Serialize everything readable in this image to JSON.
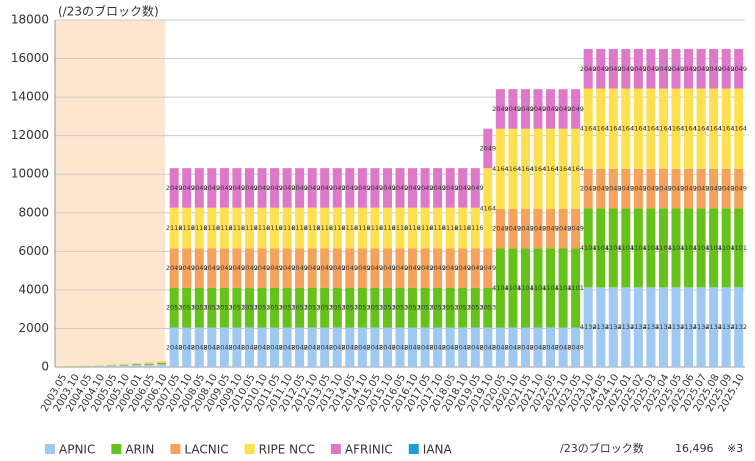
{
  "chart_data": {
    "type": "stacked_bar",
    "y_axis_label": "(/23のブロック数)",
    "categories": [
      "2003.05",
      "2003.10",
      "2004.05",
      "2004.10",
      "2005.05",
      "2005.10",
      "2006.01",
      "2006.05",
      "2006.10",
      "2007.05",
      "2007.10",
      "2008.05",
      "2008.10",
      "2009.05",
      "2009.10",
      "2010.05",
      "2010.10",
      "2011.05",
      "2011.10",
      "2012.05",
      "2012.10",
      "2013.05",
      "2013.10",
      "2014.05",
      "2014.10",
      "2015.05",
      "2015.10",
      "2016.05",
      "2016.10",
      "2017.05",
      "2017.10",
      "2018.05",
      "2018.10",
      "2019.05",
      "2019.10",
      "2020.05",
      "2020.10",
      "2021.05",
      "2021.10",
      "2022.05",
      "2022.10",
      "2023.05",
      "2023.10",
      "2024.05",
      "2024.10",
      "2025.01",
      "2025.02",
      "2025.03",
      "2025.04",
      "2025.05",
      "2025.06",
      "2025.07",
      "2025.08",
      "2025.09",
      "2025.10"
    ],
    "series": [
      {
        "name": "APNIC",
        "color": "#9fc9f0",
        "values": [
          10,
          20,
          30,
          40,
          60,
          80,
          100,
          120,
          150,
          2048,
          2048,
          2048,
          2048,
          2048,
          2048,
          2048,
          2048,
          2048,
          2048,
          2048,
          2048,
          2048,
          2048,
          2048,
          2048,
          2048,
          2048,
          2048,
          2048,
          2048,
          2048,
          2048,
          2048,
          2048,
          2048,
          2048,
          2048,
          2048,
          2048,
          2048,
          2048,
          2048,
          4132,
          4132,
          4132,
          4132,
          4132,
          4132,
          4132,
          4132,
          4132,
          4132,
          4132,
          4132,
          4132
        ]
      },
      {
        "name": "ARIN",
        "color": "#66c21a",
        "values": [
          5,
          10,
          15,
          20,
          25,
          30,
          40,
          50,
          60,
          2053,
          2053,
          2053,
          2053,
          2053,
          2053,
          2053,
          2053,
          2053,
          2053,
          2053,
          2053,
          2053,
          2053,
          2053,
          2053,
          2053,
          2053,
          2053,
          2053,
          2053,
          2053,
          2053,
          2053,
          2053,
          2053,
          4101,
          4101,
          4101,
          4101,
          4101,
          4101,
          4101,
          4101,
          4101,
          4101,
          4101,
          4101,
          4101,
          4101,
          4101,
          4101,
          4101,
          4101,
          4101,
          4101
        ]
      },
      {
        "name": "LACNIC",
        "color": "#f5a35c",
        "values": [
          2,
          4,
          6,
          8,
          10,
          12,
          14,
          16,
          18,
          2049,
          2049,
          2049,
          2049,
          2049,
          2049,
          2049,
          2049,
          2049,
          2049,
          2049,
          2049,
          2049,
          2049,
          2049,
          2049,
          2049,
          2049,
          2049,
          2049,
          2049,
          2049,
          2049,
          2049,
          2049,
          2049,
          2049,
          2049,
          2049,
          2049,
          2049,
          2049,
          2049,
          2049,
          2049,
          2049,
          2049,
          2049,
          2049,
          2049,
          2049,
          2049,
          2049,
          2049,
          2049,
          2049
        ]
      },
      {
        "name": "RIPE NCC",
        "color": "#ffe050",
        "values": [
          5,
          10,
          15,
          20,
          30,
          40,
          50,
          60,
          70,
          2116,
          2116,
          2116,
          2116,
          2116,
          2116,
          2116,
          2116,
          2116,
          2116,
          2116,
          2116,
          2116,
          2116,
          2116,
          2116,
          2116,
          2116,
          2116,
          2116,
          2116,
          2116,
          2116,
          2116,
          2116,
          4164,
          4164,
          4164,
          4164,
          4164,
          4164,
          4164,
          4164,
          4164,
          4164,
          4164,
          4164,
          4164,
          4164,
          4164,
          4164,
          4164,
          4164,
          4164,
          4164,
          4164
        ]
      },
      {
        "name": "AFRINIC",
        "color": "#de78c8",
        "values": [
          0,
          0,
          0,
          0,
          1,
          2,
          3,
          4,
          5,
          2049,
          2049,
          2049,
          2049,
          2049,
          2049,
          2049,
          2049,
          2049,
          2049,
          2049,
          2049,
          2049,
          2049,
          2049,
          2049,
          2049,
          2049,
          2049,
          2049,
          2049,
          2049,
          2049,
          2049,
          2049,
          2049,
          2049,
          2049,
          2049,
          2049,
          2049,
          2049,
          2049,
          2049,
          2049,
          2049,
          2049,
          2049,
          2049,
          2049,
          2049,
          2049,
          2049,
          2049,
          2049,
          2049
        ]
      },
      {
        "name": "IANA",
        "color": "#1a9fd9",
        "values": [
          0,
          0,
          0,
          0,
          0,
          0,
          0,
          0,
          0,
          1,
          1,
          1,
          1,
          1,
          1,
          1,
          1,
          1,
          1,
          1,
          1,
          1,
          1,
          1,
          1,
          1,
          1,
          1,
          1,
          1,
          1,
          1,
          1,
          1,
          1,
          1,
          1,
          1,
          1,
          1,
          1,
          1,
          1,
          1,
          1,
          1,
          1,
          1,
          1,
          1,
          1,
          1,
          1,
          1,
          1
        ]
      }
    ],
    "ylim": [
      0,
      18000
    ],
    "yticks": [
      0,
      2000,
      4000,
      6000,
      8000,
      10000,
      12000,
      14000,
      16000,
      18000
    ],
    "grid": true,
    "total_label": "/23のブロック数",
    "total": "16,496",
    "note": "※3"
  }
}
